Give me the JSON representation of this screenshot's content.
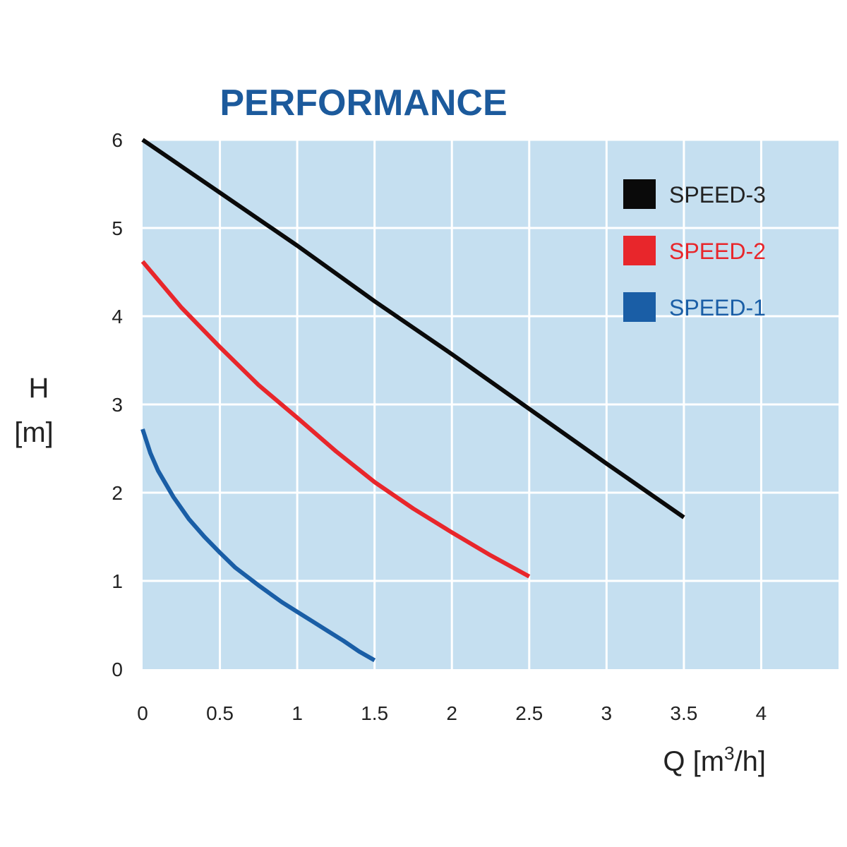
{
  "chart_data": {
    "type": "line",
    "title": "PERFORMANCE",
    "ylabel_line1": "H",
    "ylabel_line2": "[m]",
    "xlabel_main": "Q [m",
    "xlabel_sup": "3",
    "xlabel_end": "/h]",
    "xlim": [
      0,
      4.5
    ],
    "ylim": [
      0,
      6
    ],
    "x_ticks": [
      "0",
      "0.5",
      "1",
      "1.5",
      "2",
      "2.5",
      "3",
      "3.5",
      "4"
    ],
    "y_ticks": [
      "0",
      "1",
      "2",
      "3",
      "4",
      "5",
      "6"
    ],
    "grid": true,
    "legend_position": "top-right",
    "plot_background": "#c5dff0",
    "series": [
      {
        "name": "SPEED-3",
        "color": "#0a0a0a",
        "x": [
          0,
          0.5,
          1,
          1.5,
          2,
          2.5,
          3,
          3.5
        ],
        "y": [
          6.0,
          5.4,
          4.8,
          4.17,
          3.57,
          2.95,
          2.33,
          1.72
        ]
      },
      {
        "name": "SPEED-2",
        "color": "#e8262b",
        "x": [
          0,
          0.25,
          0.5,
          0.75,
          1,
          1.25,
          1.5,
          1.75,
          2,
          2.25,
          2.5
        ],
        "y": [
          4.62,
          4.1,
          3.65,
          3.22,
          2.85,
          2.47,
          2.12,
          1.82,
          1.55,
          1.29,
          1.05
        ]
      },
      {
        "name": "SPEED-1",
        "color": "#1a5ea6",
        "x": [
          0,
          0.05,
          0.1,
          0.2,
          0.3,
          0.4,
          0.5,
          0.6,
          0.75,
          0.9,
          1,
          1.1,
          1.2,
          1.3,
          1.4,
          1.5
        ],
        "y": [
          2.72,
          2.45,
          2.25,
          1.95,
          1.7,
          1.5,
          1.32,
          1.15,
          0.95,
          0.76,
          0.65,
          0.54,
          0.43,
          0.32,
          0.2,
          0.1
        ]
      }
    ]
  }
}
